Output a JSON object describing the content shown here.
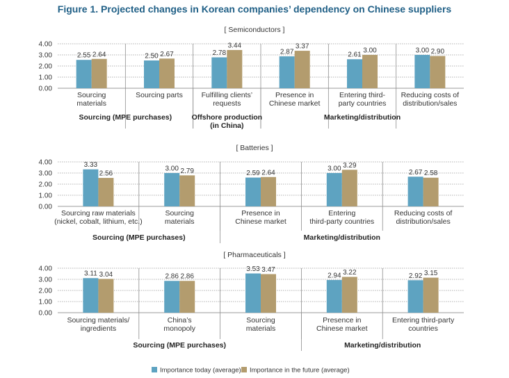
{
  "figure_title": "Figure 1. Projected changes in Korean companies’ dependency on Chinese suppliers",
  "colors": {
    "today": "#5ea3c1",
    "future": "#b39c6e",
    "grid": "#999999",
    "divider": "#8c8c8c",
    "title": "#1f5f86"
  },
  "legend": {
    "today": "Importance today (average)",
    "future": "Importance in the future (average)"
  },
  "chart_data": [
    {
      "type": "bar",
      "section_title": "[ Semiconductors ]",
      "yticks": [
        "4.00",
        "3.00",
        "2.00",
        "1.00",
        "0.00"
      ],
      "ylim": [
        0,
        4
      ],
      "categories": [
        [
          "Sourcing",
          "materials"
        ],
        [
          "Sourcing parts"
        ],
        [
          "Fulfilling clients’",
          "requests"
        ],
        [
          "Presence in",
          "Chinese market"
        ],
        [
          "Entering third-",
          "party countries"
        ],
        [
          "Reducing costs of",
          "distribution/sales"
        ]
      ],
      "series": [
        {
          "name": "Importance today (average)",
          "values": [
            2.55,
            2.5,
            2.78,
            2.87,
            2.61,
            3.0
          ],
          "labels": [
            "2.55",
            "2.50",
            "2.78",
            "2.87",
            "2.61",
            "3.00"
          ]
        },
        {
          "name": "Importance in the future (average)",
          "values": [
            2.64,
            2.67,
            3.44,
            3.37,
            3.0,
            2.9
          ],
          "labels": [
            "2.64",
            "2.67",
            "3.44",
            "3.37",
            "3.00",
            "2.90"
          ]
        }
      ],
      "groups": [
        {
          "label": [
            "Sourcing (MPE purchases)"
          ],
          "span": [
            0,
            1
          ]
        },
        {
          "label": [
            "Offshore production",
            "(in China)"
          ],
          "span": [
            2,
            2
          ]
        },
        {
          "label": [
            "Marketing/distribution"
          ],
          "span": [
            3,
            5
          ]
        }
      ]
    },
    {
      "type": "bar",
      "section_title": "[ Batteries ]",
      "yticks": [
        "4.00",
        "3.00",
        "2.00",
        "1.00",
        "0.00"
      ],
      "ylim": [
        0,
        4
      ],
      "categories": [
        [
          "Sourcing raw materials",
          "(nickel, cobalt, lithium, etc.)"
        ],
        [
          "Sourcing",
          "materials"
        ],
        [
          "Presence in",
          "Chinese market"
        ],
        [
          "Entering",
          "third-party countries"
        ],
        [
          "Reducing costs of",
          "distribution/sales"
        ]
      ],
      "series": [
        {
          "name": "Importance today (average)",
          "values": [
            3.33,
            3.0,
            2.59,
            3.0,
            2.67
          ],
          "labels": [
            "3.33",
            "3.00",
            "2.59",
            "3.00",
            "2.67"
          ]
        },
        {
          "name": "Importance in the future (average)",
          "values": [
            2.56,
            2.79,
            2.64,
            3.29,
            2.58
          ],
          "labels": [
            "2.56",
            "2.79",
            "2.64",
            "3.29",
            "2.58"
          ]
        }
      ],
      "groups": [
        {
          "label": [
            "Sourcing (MPE purchases)"
          ],
          "span": [
            0,
            1
          ]
        },
        {
          "label": [
            "Marketing/distribution"
          ],
          "span": [
            2,
            4
          ]
        }
      ]
    },
    {
      "type": "bar",
      "section_title": "[ Pharmaceuticals ]",
      "yticks": [
        "4.00",
        "3.00",
        "2.00",
        "1.00",
        "0.00"
      ],
      "ylim": [
        0,
        4
      ],
      "categories": [
        [
          "Sourcing materials/",
          "ingredients"
        ],
        [
          "China’s",
          "monopoly"
        ],
        [
          "Sourcing",
          "materials"
        ],
        [
          "Presence in",
          "Chinese market"
        ],
        [
          "Entering third-party",
          "countries"
        ]
      ],
      "series": [
        {
          "name": "Importance today (average)",
          "values": [
            3.11,
            2.86,
            3.53,
            2.94,
            2.92
          ],
          "labels": [
            "3.11",
            "2.86",
            "3.53",
            "2.94",
            "2.92"
          ]
        },
        {
          "name": "Importance in the future (average)",
          "values": [
            3.04,
            2.86,
            3.47,
            3.22,
            3.15
          ],
          "labels": [
            "3.04",
            "2.86",
            "3.47",
            "3.22",
            "3.15"
          ]
        }
      ],
      "groups": [
        {
          "label": [
            "Sourcing (MPE purchases)"
          ],
          "span": [
            0,
            2
          ]
        },
        {
          "label": [
            "Marketing/distribution"
          ],
          "span": [
            3,
            4
          ]
        }
      ]
    }
  ]
}
